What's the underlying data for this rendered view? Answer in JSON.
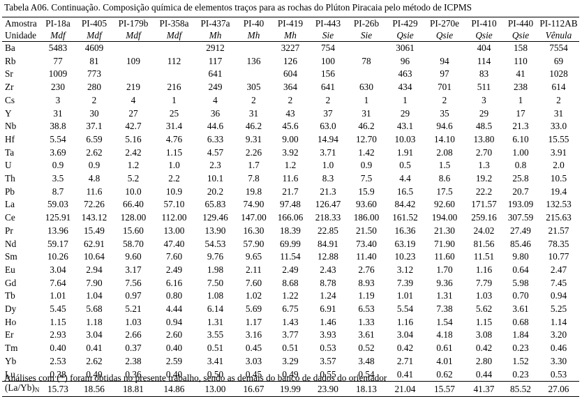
{
  "caption": "Tabela A06. Continuação. Composição química de elementos traços para as rochas do Plúton Piracaia pelo método de ICPMS",
  "header_label_sample": "Amostra",
  "header_label_unit": "Unidade",
  "samples": [
    "PI-18a",
    "PI-405",
    "PI-179b",
    "PI-358a",
    "PI-437a",
    "PI-40",
    "PI-419",
    "PI-443",
    "PI-26b",
    "PI-429",
    "PI-270e",
    "PI-410",
    "PI-440",
    "PI-112AB"
  ],
  "units": [
    "Mdf",
    "Mdf",
    "Mdf",
    "Mdf",
    "Mh",
    "Mh",
    "Mh",
    "Sie",
    "Sie",
    "Qsie",
    "Qsie",
    "Qsie",
    "Qsie",
    "Vênula"
  ],
  "rows": [
    {
      "el": "Ba",
      "v": [
        "5483",
        "4609",
        "",
        "",
        "2912",
        "",
        "3227",
        "754",
        "",
        "3061",
        "",
        "404",
        "158",
        "7554"
      ]
    },
    {
      "el": "Rb",
      "v": [
        "77",
        "81",
        "109",
        "112",
        "117",
        "136",
        "126",
        "100",
        "78",
        "96",
        "94",
        "114",
        "110",
        "69"
      ]
    },
    {
      "el": "Sr",
      "v": [
        "1009",
        "773",
        "",
        "",
        "641",
        "",
        "604",
        "156",
        "",
        "463",
        "97",
        "83",
        "41",
        "1028"
      ]
    },
    {
      "el": "Zr",
      "v": [
        "230",
        "280",
        "219",
        "216",
        "249",
        "305",
        "364",
        "641",
        "630",
        "434",
        "701",
        "511",
        "238",
        "614"
      ]
    },
    {
      "el": "Cs",
      "v": [
        "3",
        "2",
        "4",
        "1",
        "4",
        "2",
        "2",
        "2",
        "1",
        "1",
        "2",
        "3",
        "1",
        "2"
      ]
    },
    {
      "el": "Y",
      "v": [
        "31",
        "30",
        "27",
        "25",
        "36",
        "31",
        "43",
        "37",
        "31",
        "29",
        "35",
        "29",
        "17",
        "31"
      ]
    },
    {
      "el": "Nb",
      "v": [
        "38.8",
        "37.1",
        "42.7",
        "31.4",
        "44.6",
        "46.2",
        "45.6",
        "63.0",
        "46.2",
        "43.1",
        "94.6",
        "48.5",
        "21.3",
        "33.0"
      ]
    },
    {
      "el": "Hf",
      "v": [
        "5.54",
        "6.59",
        "5.16",
        "4.76",
        "6.33",
        "9.31",
        "9.00",
        "14.94",
        "12.70",
        "10.03",
        "14.10",
        "13.80",
        "6.10",
        "15.55"
      ]
    },
    {
      "el": "Ta",
      "v": [
        "3.69",
        "2.62",
        "2.42",
        "1.15",
        "4.57",
        "2.26",
        "3.92",
        "3.71",
        "1.42",
        "1.91",
        "2.08",
        "2.70",
        "1.00",
        "3.91"
      ]
    },
    {
      "el": "U",
      "v": [
        "0.9",
        "0.9",
        "1.2",
        "1.0",
        "2.3",
        "1.7",
        "1.2",
        "1.0",
        "0.9",
        "0.5",
        "1.5",
        "1.3",
        "0.8",
        "2.0"
      ]
    },
    {
      "el": "Th",
      "v": [
        "3.5",
        "4.8",
        "5.2",
        "2.2",
        "10.1",
        "7.8",
        "11.6",
        "8.3",
        "7.5",
        "4.4",
        "8.6",
        "19.2",
        "25.8",
        "10.5"
      ]
    },
    {
      "el": "Pb",
      "v": [
        "8.7",
        "11.6",
        "10.0",
        "10.9",
        "20.2",
        "19.8",
        "21.7",
        "21.3",
        "15.9",
        "16.5",
        "17.5",
        "22.2",
        "20.7",
        "19.4"
      ]
    },
    {
      "el": "La",
      "v": [
        "59.03",
        "72.26",
        "66.40",
        "57.10",
        "65.83",
        "74.90",
        "97.48",
        "126.47",
        "93.60",
        "84.42",
        "92.60",
        "171.57",
        "193.09",
        "132.53"
      ]
    },
    {
      "el": "Ce",
      "v": [
        "125.91",
        "143.12",
        "128.00",
        "112.00",
        "129.46",
        "147.00",
        "166.06",
        "218.33",
        "186.00",
        "161.52",
        "194.00",
        "259.16",
        "307.59",
        "215.63"
      ]
    },
    {
      "el": "Pr",
      "v": [
        "13.96",
        "15.49",
        "15.60",
        "13.00",
        "13.90",
        "16.30",
        "18.39",
        "22.85",
        "21.50",
        "16.36",
        "21.30",
        "24.02",
        "27.49",
        "21.57"
      ]
    },
    {
      "el": "Nd",
      "v": [
        "59.17",
        "62.91",
        "58.70",
        "47.40",
        "54.53",
        "57.90",
        "69.99",
        "84.91",
        "73.40",
        "63.19",
        "71.90",
        "81.56",
        "85.46",
        "78.35"
      ]
    },
    {
      "el": "Sm",
      "v": [
        "10.26",
        "10.64",
        "9.60",
        "7.60",
        "9.76",
        "9.65",
        "11.54",
        "12.88",
        "11.40",
        "10.23",
        "11.60",
        "11.51",
        "9.80",
        "10.77"
      ]
    },
    {
      "el": "Eu",
      "v": [
        "3.04",
        "2.94",
        "3.17",
        "2.49",
        "1.98",
        "2.11",
        "2.49",
        "2.43",
        "2.76",
        "3.12",
        "1.70",
        "1.16",
        "0.64",
        "2.47"
      ]
    },
    {
      "el": "Gd",
      "v": [
        "7.64",
        "7.90",
        "7.56",
        "6.16",
        "7.50",
        "7.60",
        "8.68",
        "8.78",
        "8.93",
        "7.39",
        "9.36",
        "7.79",
        "5.98",
        "7.45"
      ]
    },
    {
      "el": "Tb",
      "v": [
        "1.01",
        "1.04",
        "0.97",
        "0.80",
        "1.08",
        "1.02",
        "1.22",
        "1.24",
        "1.19",
        "1.01",
        "1.31",
        "1.03",
        "0.70",
        "0.94"
      ]
    },
    {
      "el": "Dy",
      "v": [
        "5.45",
        "5.68",
        "5.21",
        "4.44",
        "6.14",
        "5.69",
        "6.75",
        "6.91",
        "6.53",
        "5.54",
        "7.38",
        "5.62",
        "3.61",
        "5.25"
      ]
    },
    {
      "el": "Ho",
      "v": [
        "1.15",
        "1.18",
        "1.03",
        "0.94",
        "1.31",
        "1.17",
        "1.43",
        "1.46",
        "1.33",
        "1.16",
        "1.54",
        "1.15",
        "0.68",
        "1.14"
      ]
    },
    {
      "el": "Er",
      "v": [
        "2.93",
        "3.04",
        "2.66",
        "2.60",
        "3.55",
        "3.16",
        "3.77",
        "3.93",
        "3.61",
        "3.04",
        "4.18",
        "3.08",
        "1.84",
        "3.20"
      ]
    },
    {
      "el": "Tm",
      "v": [
        "0.40",
        "0.41",
        "0.37",
        "0.40",
        "0.51",
        "0.45",
        "0.51",
        "0.53",
        "0.52",
        "0.42",
        "0.61",
        "0.42",
        "0.23",
        "0.46"
      ]
    },
    {
      "el": "Yb",
      "v": [
        "2.53",
        "2.62",
        "2.38",
        "2.59",
        "3.41",
        "3.03",
        "3.29",
        "3.57",
        "3.48",
        "2.71",
        "4.01",
        "2.80",
        "1.52",
        "3.30"
      ]
    },
    {
      "el": "Lu",
      "v": [
        "0.38",
        "0.40",
        "0.36",
        "0.40",
        "0.50",
        "0.45",
        "0.49",
        "0.55",
        "0.54",
        "0.41",
        "0.62",
        "0.44",
        "0.23",
        "0.53"
      ]
    }
  ],
  "ratio_row": {
    "label_main": "(La/Yb)",
    "label_sub": "N",
    "v": [
      "15.73",
      "18.56",
      "18.81",
      "14.86",
      "13.00",
      "16.67",
      "19.99",
      "23.90",
      "18.13",
      "21.04",
      "15.57",
      "41.37",
      "85.52",
      "27.06"
    ]
  },
  "footnote": "Análises com (*) foram obtidas no presente trabalho, sendo as demais do banco de dados do orientador"
}
